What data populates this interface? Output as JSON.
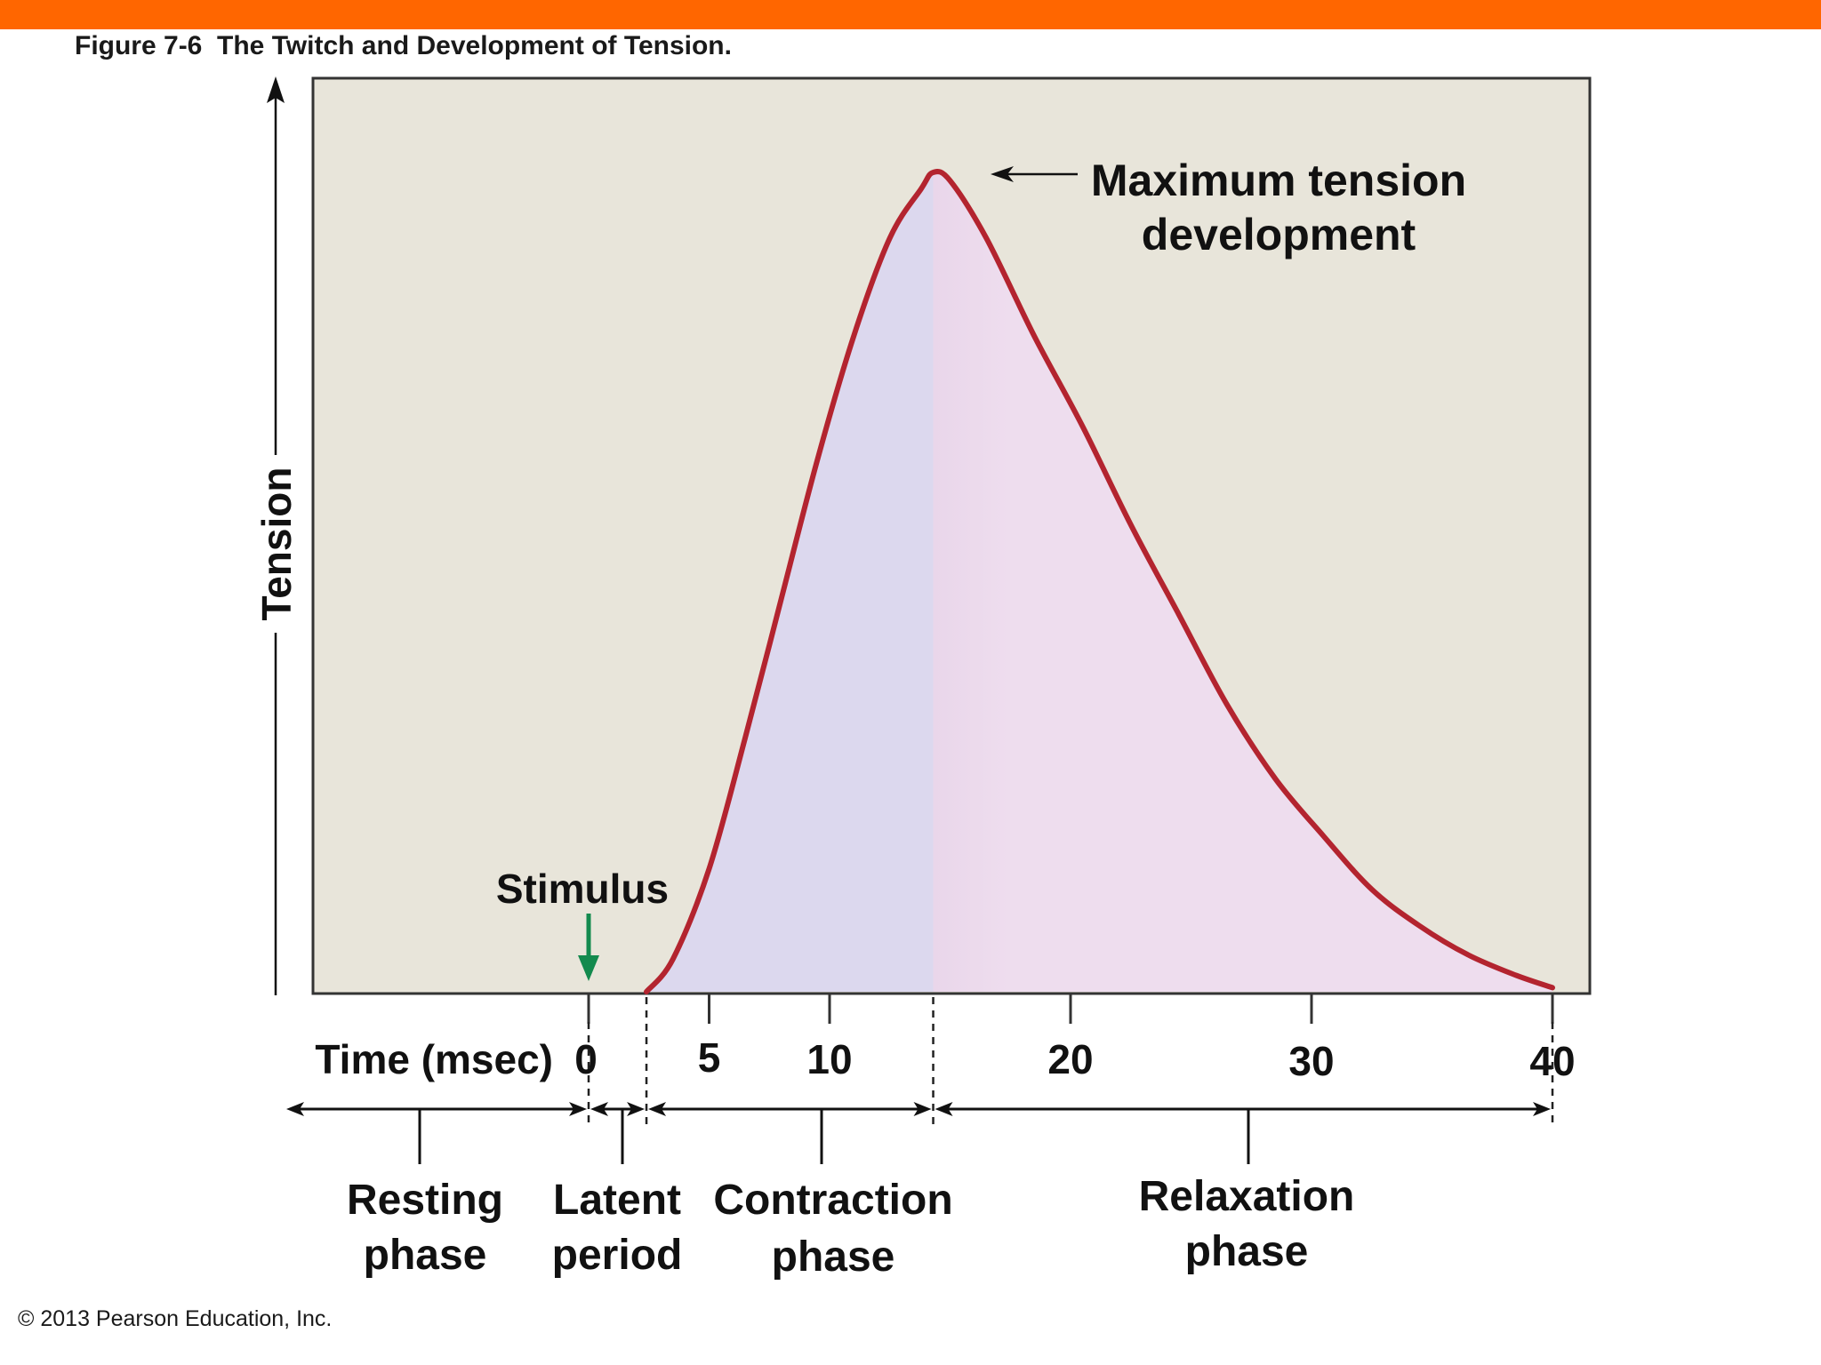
{
  "colors": {
    "accent_bar": "#ff6600",
    "plot_background": "#e8e5da",
    "curve": "#b3242f",
    "contraction_fill_light": "#dcd8ee",
    "contraction_fill_dark": "#9d9cd2",
    "relaxation_fill_dark": "#d8bcdc",
    "relaxation_fill_light": "#eeddee",
    "stimulus_arrow": "#138a4e",
    "text": "#111111"
  },
  "figure": {
    "title": "Figure 7-6  The Twitch and Development of Tension.",
    "copyright": "© 2013 Pearson Education, Inc."
  },
  "chart_data": {
    "type": "area",
    "ylabel": "Tension",
    "xlabel": "Time (msec)",
    "x_ticks": [
      {
        "value": 0,
        "label": "0"
      },
      {
        "value": 5,
        "label": "5"
      },
      {
        "value": 10,
        "label": "10"
      },
      {
        "value": 20,
        "label": "20"
      },
      {
        "value": 30,
        "label": "30"
      },
      {
        "value": 40,
        "label": "40"
      }
    ],
    "xlim": [
      -11.5,
      41.5
    ],
    "ylim": [
      0,
      1.08
    ],
    "series": [
      {
        "points": [
          [
            2.4,
            0
          ],
          [
            3.5,
            0.04
          ],
          [
            5,
            0.15
          ],
          [
            6.5,
            0.31
          ],
          [
            8,
            0.48
          ],
          [
            9.5,
            0.65
          ],
          [
            11,
            0.8
          ],
          [
            12.5,
            0.92
          ],
          [
            13.8,
            0.98
          ],
          [
            14.3,
            1.0
          ],
          [
            15,
            0.99
          ],
          [
            16.5,
            0.92
          ],
          [
            18.5,
            0.8
          ],
          [
            20.5,
            0.69
          ],
          [
            22.5,
            0.57
          ],
          [
            24.5,
            0.46
          ],
          [
            26.5,
            0.35
          ],
          [
            28.5,
            0.26
          ],
          [
            30.5,
            0.19
          ],
          [
            32.5,
            0.125
          ],
          [
            34.5,
            0.08
          ],
          [
            36.5,
            0.045
          ],
          [
            38.5,
            0.02
          ],
          [
            40,
            0.005
          ]
        ]
      }
    ],
    "stimulus_time": 0,
    "latent_end": 2.4,
    "peak_time": 14.3,
    "annotations": {
      "stimulus": "Stimulus",
      "max_tension_line1": "Maximum tension",
      "max_tension_line2": "development"
    },
    "phases": [
      {
        "name": "resting",
        "line1": "Resting",
        "line2": "phase"
      },
      {
        "name": "latent",
        "line1": "Latent",
        "line2": "period"
      },
      {
        "name": "contraction",
        "line1": "Contraction",
        "line2": "phase"
      },
      {
        "name": "relaxation",
        "line1": "Relaxation",
        "line2": "phase"
      }
    ]
  }
}
